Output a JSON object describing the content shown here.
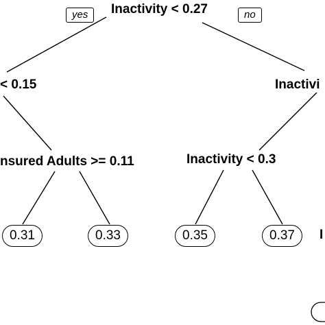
{
  "tree": {
    "branch_tags": {
      "yes": "yes",
      "no": "no"
    },
    "splits": {
      "root": "Inactivity < 0.27",
      "left": "< 0.15",
      "right": "Inactivi",
      "left_right": "nsured Adults >= 0.11",
      "right_left": "Inactivity < 0.3",
      "far_right_fragment": "I"
    },
    "leaves": [
      "0.31",
      "0.33",
      "0.35",
      "0.37"
    ]
  }
}
